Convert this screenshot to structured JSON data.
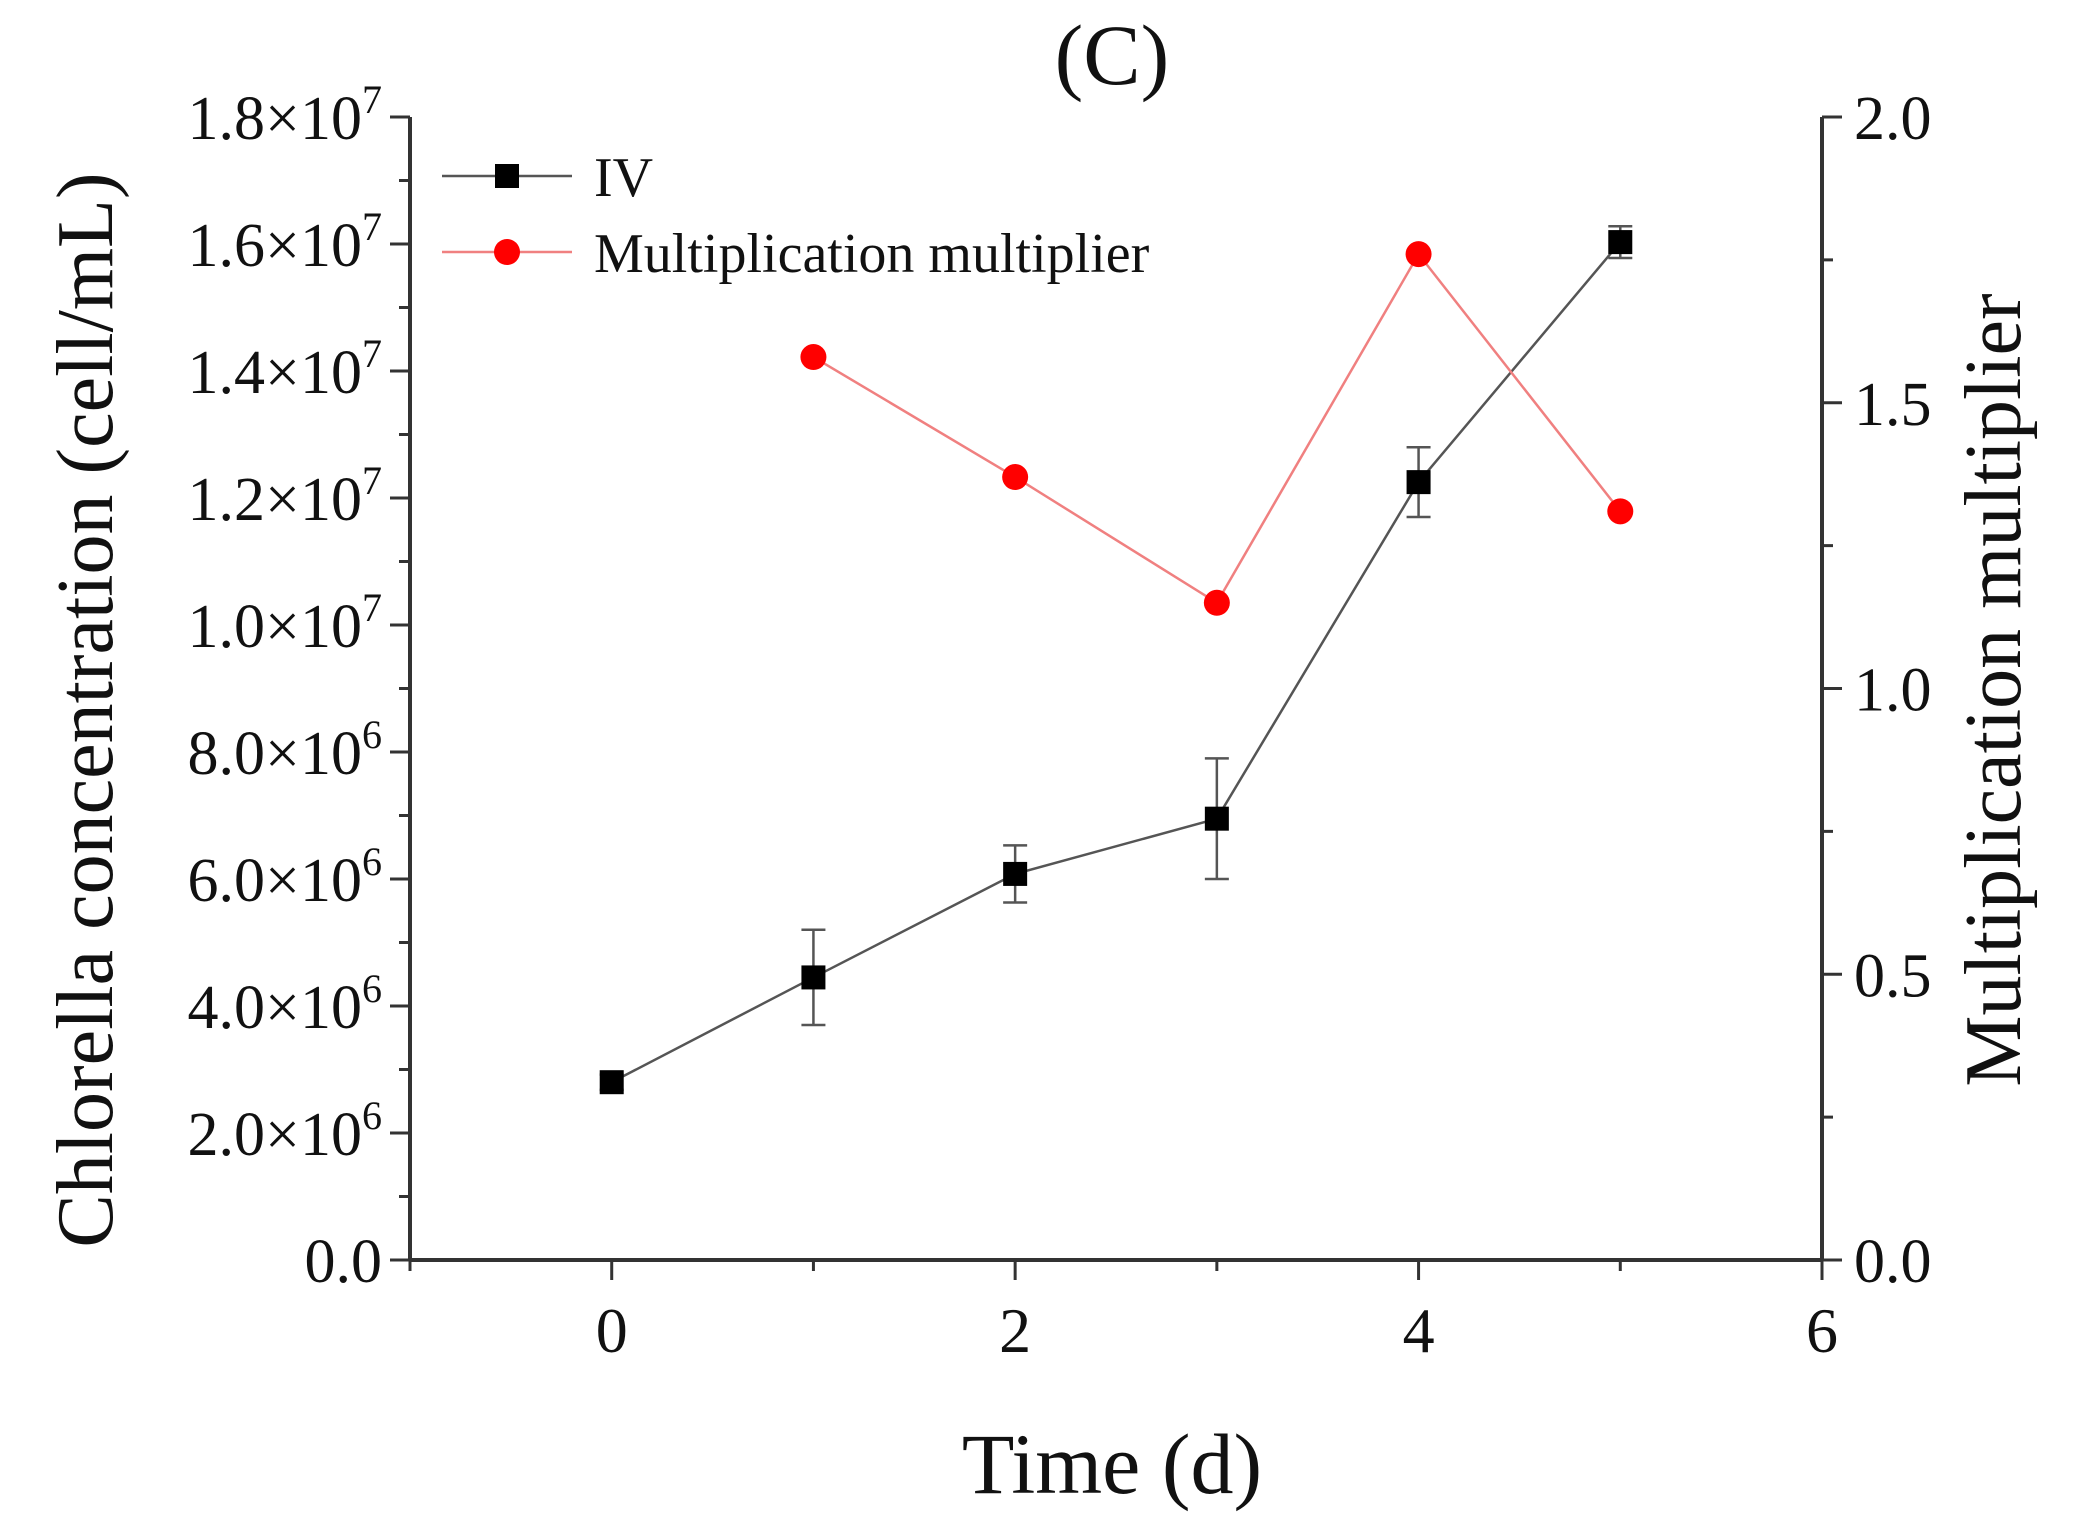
{
  "chart_data": {
    "type": "line",
    "panel_label": "(C)",
    "xlabel": "Time (d)",
    "ylabel_left": "Chlorella concentration (cell/mL)",
    "ylabel_right": "Multiplication multiplier",
    "xlim": [
      -1,
      6
    ],
    "ylim_left": [
      0,
      18000000
    ],
    "ylim_right": [
      0,
      2.0
    ],
    "x_ticks": [
      0,
      2,
      4,
      6
    ],
    "x_tick_labels": [
      "0",
      "2",
      "4",
      "6"
    ],
    "y_left_ticks": [
      {
        "value": 0,
        "mantissa": "0.0",
        "exp": ""
      },
      {
        "value": 2000000,
        "mantissa": "2.0×10",
        "exp": "6"
      },
      {
        "value": 4000000,
        "mantissa": "4.0×10",
        "exp": "6"
      },
      {
        "value": 6000000,
        "mantissa": "6.0×10",
        "exp": "6"
      },
      {
        "value": 8000000,
        "mantissa": "8.0×10",
        "exp": "6"
      },
      {
        "value": 10000000,
        "mantissa": "1.0×10",
        "exp": "7"
      },
      {
        "value": 12000000,
        "mantissa": "1.2×10",
        "exp": "7"
      },
      {
        "value": 14000000,
        "mantissa": "1.4×10",
        "exp": "7"
      },
      {
        "value": 16000000,
        "mantissa": "1.6×10",
        "exp": "7"
      },
      {
        "value": 18000000,
        "mantissa": "1.8×10",
        "exp": "7"
      }
    ],
    "y_right_ticks": [
      0,
      0.5,
      1.0,
      1.5,
      2.0
    ],
    "y_right_tick_labels": [
      "0.0",
      "0.5",
      "1.0",
      "1.5",
      "2.0"
    ],
    "legend_position": "top-left",
    "series": [
      {
        "name": "IV",
        "axis": "left",
        "color": "#000000",
        "line_color": "#555555",
        "marker": "square",
        "x": [
          0,
          1,
          2,
          3,
          4,
          5
        ],
        "values": [
          2800000,
          4450000,
          6080000,
          6950000,
          12250000,
          16030000
        ],
        "errors": [
          120000,
          750000,
          450000,
          950000,
          550000,
          250000
        ]
      },
      {
        "name": "Multiplication multiplier",
        "axis": "right",
        "color": "#ff0000",
        "line_color": "#f08080",
        "marker": "circle",
        "x": [
          1,
          2,
          3,
          4,
          5
        ],
        "values": [
          1.58,
          1.37,
          1.15,
          1.76,
          1.31
        ]
      }
    ]
  }
}
